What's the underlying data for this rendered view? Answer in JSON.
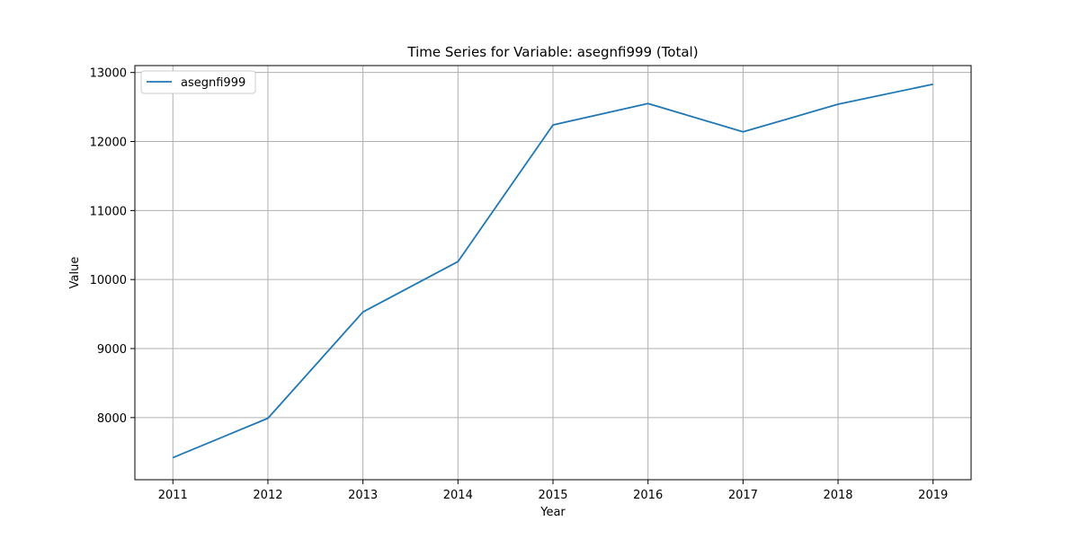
{
  "chart_data": {
    "type": "line",
    "title": "Time Series for Variable: asegnfi999 (Total)",
    "xlabel": "Year",
    "ylabel": "Value",
    "x": [
      2011,
      2012,
      2013,
      2014,
      2015,
      2016,
      2017,
      2018,
      2019
    ],
    "x_ticks": [
      "2011",
      "2012",
      "2013",
      "2014",
      "2015",
      "2016",
      "2017",
      "2018",
      "2019"
    ],
    "y_ticks": [
      "8000",
      "9000",
      "10000",
      "11000",
      "12000",
      "13000"
    ],
    "ylim": [
      7100,
      13100
    ],
    "grid": true,
    "legend_position": "top-left",
    "series": [
      {
        "name": "asegnfi999",
        "color": "#1f77b4",
        "values": [
          7420,
          7990,
          9530,
          10260,
          12240,
          12550,
          12140,
          12540,
          12830
        ]
      }
    ]
  }
}
